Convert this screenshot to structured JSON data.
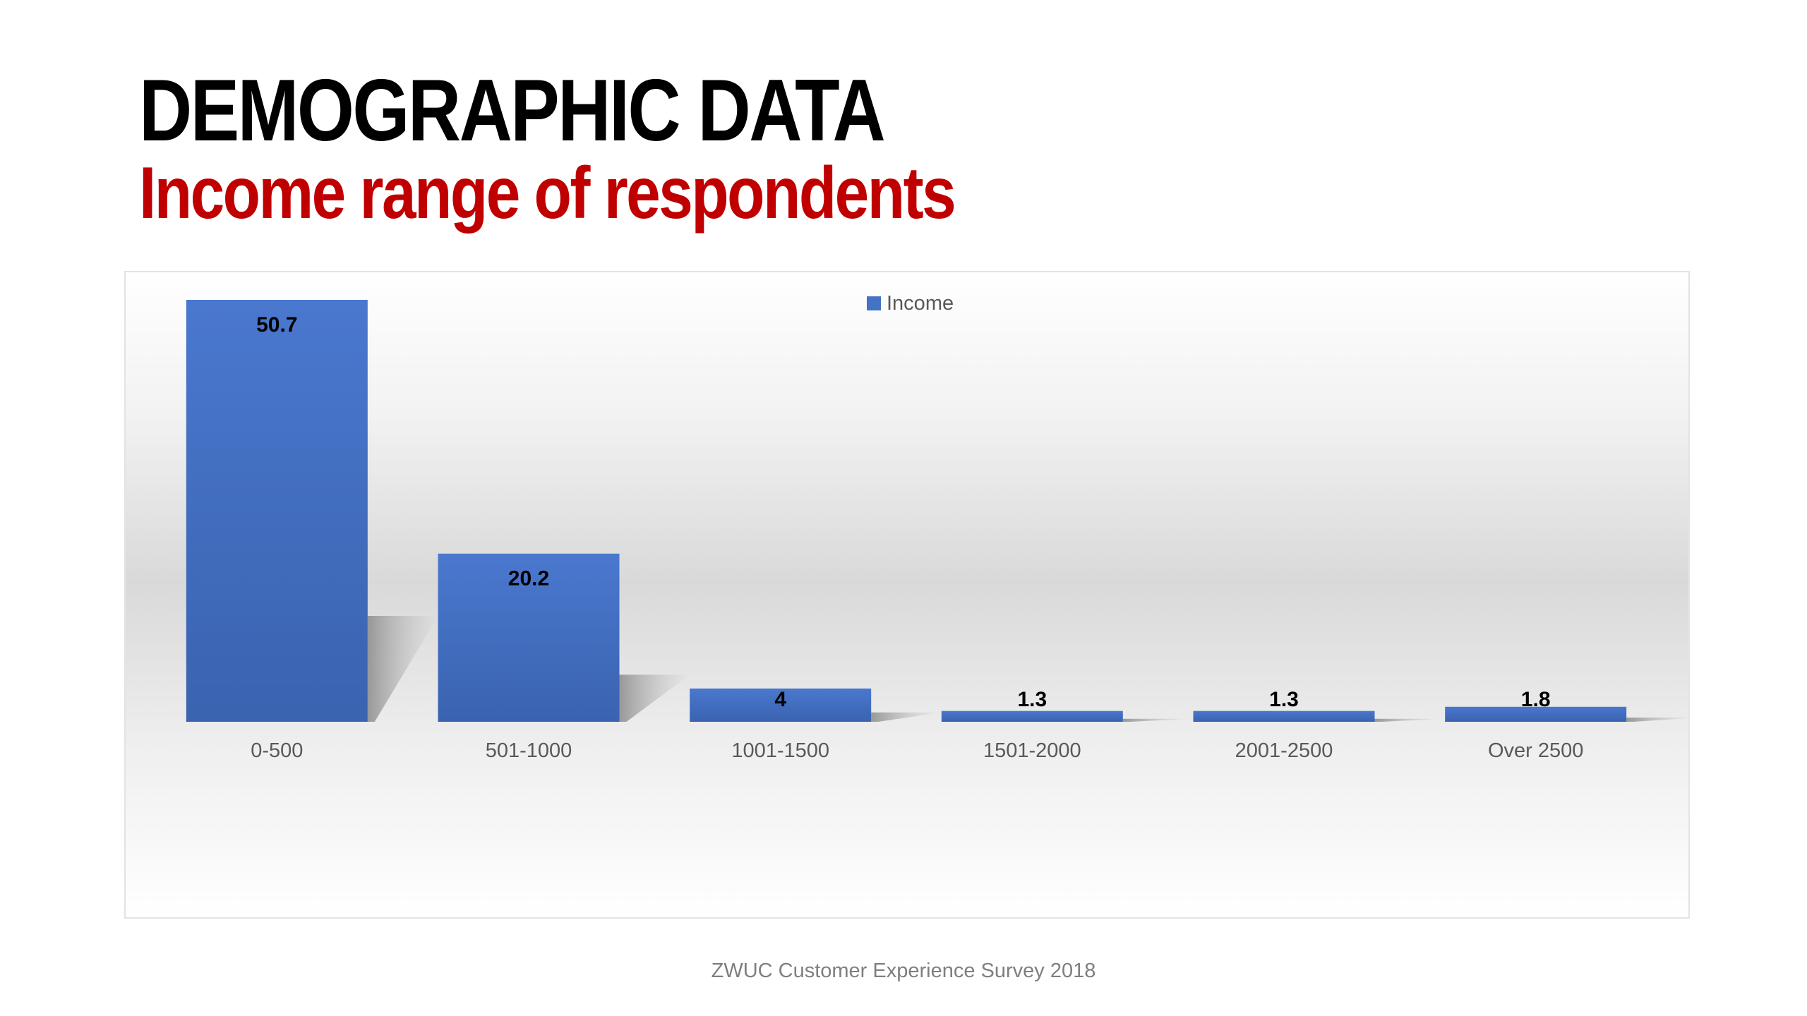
{
  "title": "DEMOGRAPHIC DATA",
  "subtitle": "Income range of respondents",
  "source": "ZWUC Customer Experience Survey 2018",
  "colors": {
    "bar": "#4472c4",
    "title": "#000000",
    "subtitle": "#c00000"
  },
  "chart_data": {
    "type": "bar",
    "categories": [
      "0-500",
      "501-1000",
      "1001-1500",
      "1501-2000",
      "2001-2500",
      "Over 2500"
    ],
    "series": [
      {
        "name": "Income",
        "values": [
          50.7,
          20.2,
          4,
          1.3,
          1.3,
          1.8
        ]
      }
    ],
    "data_labels": [
      "50.7",
      "20.2",
      "4",
      "1.3",
      "1.3",
      "1.8"
    ],
    "legend": "top-center",
    "grid": false,
    "ylim": [
      0,
      50.7
    ]
  }
}
